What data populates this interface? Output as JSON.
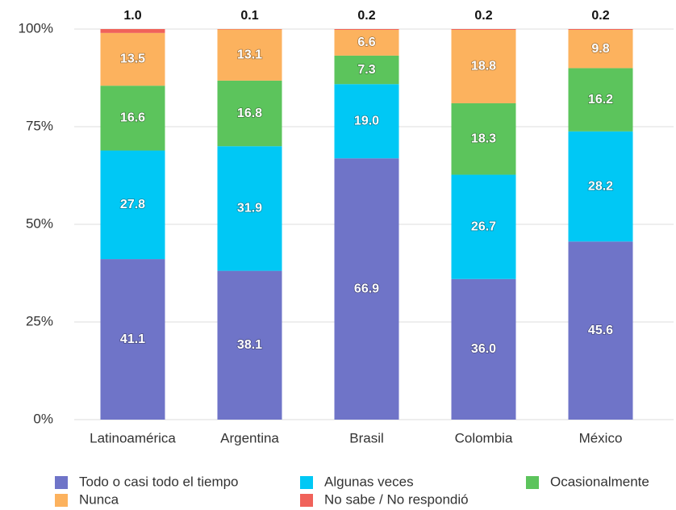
{
  "chart_data": {
    "type": "stacked_bar",
    "categories": [
      "Latinoamérica",
      "Argentina",
      "Brasil",
      "Colombia",
      "México"
    ],
    "series": [
      {
        "name": "Todo o casi todo el tiempo",
        "color": "#6f74c8",
        "values": [
          41.1,
          38.1,
          66.9,
          36.0,
          45.6
        ],
        "value_labels": [
          "41.1",
          "38.1",
          "66.9",
          "36.0",
          "45.6"
        ]
      },
      {
        "name": "Algunas veces",
        "color": "#00c8f5",
        "values": [
          27.8,
          31.9,
          19.0,
          26.7,
          28.2
        ],
        "value_labels": [
          "27.8",
          "31.9",
          "19.0",
          "26.7",
          "28.2"
        ]
      },
      {
        "name": "Ocasionalmente",
        "color": "#5cc45c",
        "values": [
          16.6,
          16.8,
          7.3,
          18.3,
          16.2
        ],
        "value_labels": [
          "16.6",
          "16.8",
          "7.3",
          "18.3",
          "16.2"
        ]
      },
      {
        "name": "Nunca",
        "color": "#fcb25e",
        "values": [
          13.5,
          13.1,
          6.6,
          18.8,
          9.8
        ],
        "value_labels": [
          "13.5",
          "13.1",
          "6.6",
          "18.8",
          "9.8"
        ]
      },
      {
        "name": "No sabe / No respondió",
        "color": "#f0625a",
        "values": [
          1.0,
          0.1,
          0.2,
          0.2,
          0.2
        ],
        "value_labels": [
          "1.0",
          "0.1",
          "0.2",
          "0.2",
          "0.2"
        ]
      }
    ],
    "ylim": [
      0,
      100
    ],
    "yticks": [
      {
        "value": 0,
        "label": "0%"
      },
      {
        "value": 25,
        "label": "25%"
      },
      {
        "value": 50,
        "label": "50%"
      },
      {
        "value": 75,
        "label": "75%"
      },
      {
        "value": 100,
        "label": "100%"
      }
    ],
    "grid": true
  }
}
